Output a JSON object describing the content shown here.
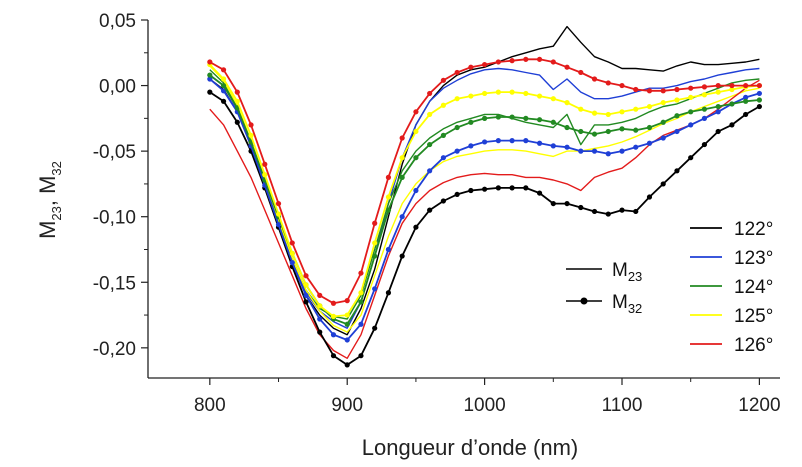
{
  "chart_data": {
    "type": "line",
    "xlabel": "Longueur d’onde (nm)",
    "ylabel": {
      "main1": "M",
      "sub1": "23",
      "sep": ", ",
      "main2": "M",
      "sub2": "32"
    },
    "xlim": [
      755,
      1215
    ],
    "ylim": [
      -0.223,
      0.05
    ],
    "xticks": [
      800,
      900,
      1000,
      1100,
      1200
    ],
    "xtick_labels": [
      "800",
      "900",
      "1000",
      "1100",
      "1200"
    ],
    "yticks": [
      0.05,
      0.0,
      -0.05,
      -0.1,
      -0.15,
      -0.2
    ],
    "ytick_labels": [
      "0,05",
      "0,00",
      "-0,05",
      "-0,10",
      "-0,15",
      "-0,20"
    ],
    "grid": false,
    "style_legend": {
      "placement": "center-right",
      "items": [
        {
          "main": "M",
          "sub": "23",
          "style": "line"
        },
        {
          "main": "M",
          "sub": "32",
          "style": "line-dots"
        }
      ]
    },
    "angle_legend": {
      "placement": "bottom-right",
      "items": [
        {
          "label": "122°",
          "color": "#000000"
        },
        {
          "label": "123°",
          "color": "#1f3fd6"
        },
        {
          "label": "124°",
          "color": "#228a22"
        },
        {
          "label": "125°",
          "color": "#ffff00"
        },
        {
          "label": "126°",
          "color": "#e31b1b"
        }
      ]
    },
    "series": [
      {
        "angle": "122°",
        "type": "M23",
        "color": "#000000",
        "markers": false,
        "x": [
          800,
          810,
          820,
          830,
          840,
          850,
          860,
          870,
          880,
          890,
          900,
          910,
          920,
          930,
          940,
          950,
          960,
          970,
          980,
          990,
          1000,
          1010,
          1020,
          1030,
          1040,
          1050,
          1060,
          1070,
          1080,
          1090,
          1100,
          1110,
          1120,
          1130,
          1140,
          1150,
          1160,
          1170,
          1180,
          1190,
          1200
        ],
        "y": [
          0.005,
          -0.003,
          -0.02,
          -0.045,
          -0.075,
          -0.105,
          -0.135,
          -0.16,
          -0.175,
          -0.185,
          -0.19,
          -0.17,
          -0.14,
          -0.1,
          -0.06,
          -0.03,
          -0.012,
          0.0,
          0.008,
          0.012,
          0.014,
          0.018,
          0.022,
          0.025,
          0.028,
          0.03,
          0.045,
          0.033,
          0.022,
          0.018,
          0.013,
          0.013,
          0.012,
          0.011,
          0.015,
          0.018,
          0.016,
          0.016,
          0.017,
          0.018,
          0.02
        ]
      },
      {
        "angle": "123°",
        "type": "M23",
        "color": "#1f3fd6",
        "markers": false,
        "x": [
          800,
          810,
          820,
          830,
          840,
          850,
          860,
          870,
          880,
          890,
          900,
          910,
          920,
          930,
          940,
          950,
          960,
          970,
          980,
          990,
          1000,
          1010,
          1020,
          1030,
          1040,
          1050,
          1060,
          1070,
          1080,
          1090,
          1100,
          1110,
          1120,
          1130,
          1140,
          1150,
          1160,
          1170,
          1180,
          1190,
          1200
        ],
        "y": [
          0.008,
          0.0,
          -0.018,
          -0.044,
          -0.074,
          -0.104,
          -0.133,
          -0.158,
          -0.172,
          -0.18,
          -0.185,
          -0.165,
          -0.13,
          -0.09,
          -0.055,
          -0.03,
          -0.012,
          -0.002,
          0.004,
          0.009,
          0.012,
          0.013,
          0.012,
          0.01,
          0.008,
          -0.003,
          0.005,
          -0.005,
          -0.01,
          -0.01,
          -0.008,
          -0.005,
          -0.002,
          -0.002,
          0.0,
          0.003,
          0.005,
          0.008,
          0.01,
          0.012,
          0.013
        ]
      },
      {
        "angle": "124°",
        "type": "M23",
        "color": "#228a22",
        "markers": false,
        "x": [
          800,
          810,
          820,
          830,
          840,
          850,
          860,
          870,
          880,
          890,
          900,
          910,
          920,
          930,
          940,
          950,
          960,
          970,
          980,
          990,
          1000,
          1010,
          1020,
          1030,
          1040,
          1050,
          1060,
          1070,
          1080,
          1090,
          1100,
          1110,
          1120,
          1130,
          1140,
          1150,
          1160,
          1170,
          1180,
          1190,
          1200
        ],
        "y": [
          0.012,
          0.002,
          -0.017,
          -0.043,
          -0.073,
          -0.103,
          -0.132,
          -0.156,
          -0.17,
          -0.176,
          -0.178,
          -0.16,
          -0.125,
          -0.09,
          -0.065,
          -0.05,
          -0.04,
          -0.033,
          -0.028,
          -0.025,
          -0.022,
          -0.022,
          -0.025,
          -0.028,
          -0.03,
          -0.032,
          -0.022,
          -0.045,
          -0.03,
          -0.03,
          -0.028,
          -0.025,
          -0.02,
          -0.016,
          -0.014,
          -0.01,
          -0.006,
          -0.002,
          0.002,
          0.004,
          0.005
        ]
      },
      {
        "angle": "125°",
        "type": "M23",
        "color": "#ffff00",
        "markers": false,
        "x": [
          800,
          810,
          820,
          830,
          840,
          850,
          860,
          870,
          880,
          890,
          900,
          910,
          920,
          930,
          940,
          950,
          960,
          970,
          980,
          990,
          1000,
          1010,
          1020,
          1030,
          1040,
          1050,
          1060,
          1070,
          1080,
          1090,
          1100,
          1110,
          1120,
          1130,
          1140,
          1150,
          1160,
          1170,
          1180,
          1190,
          1200
        ],
        "y": [
          0.015,
          0.004,
          -0.015,
          -0.042,
          -0.072,
          -0.102,
          -0.132,
          -0.156,
          -0.172,
          -0.183,
          -0.188,
          -0.175,
          -0.145,
          -0.115,
          -0.09,
          -0.075,
          -0.065,
          -0.058,
          -0.054,
          -0.052,
          -0.05,
          -0.049,
          -0.049,
          -0.05,
          -0.052,
          -0.054,
          -0.05,
          -0.05,
          -0.048,
          -0.046,
          -0.043,
          -0.039,
          -0.034,
          -0.029,
          -0.025,
          -0.02,
          -0.016,
          -0.012,
          -0.008,
          -0.004,
          -0.002
        ]
      },
      {
        "angle": "126°",
        "type": "M23",
        "color": "#e31b1b",
        "markers": false,
        "x": [
          800,
          810,
          820,
          830,
          840,
          850,
          860,
          870,
          880,
          890,
          900,
          910,
          920,
          930,
          940,
          950,
          960,
          970,
          980,
          990,
          1000,
          1010,
          1020,
          1030,
          1040,
          1050,
          1060,
          1070,
          1080,
          1090,
          1100,
          1110,
          1120,
          1130,
          1140,
          1150,
          1160,
          1170,
          1180,
          1190,
          1200
        ],
        "y": [
          -0.018,
          -0.03,
          -0.05,
          -0.07,
          -0.095,
          -0.12,
          -0.145,
          -0.17,
          -0.19,
          -0.202,
          -0.208,
          -0.19,
          -0.16,
          -0.13,
          -0.105,
          -0.09,
          -0.08,
          -0.074,
          -0.07,
          -0.068,
          -0.067,
          -0.068,
          -0.068,
          -0.07,
          -0.07,
          -0.072,
          -0.075,
          -0.08,
          -0.07,
          -0.066,
          -0.063,
          -0.055,
          -0.045,
          -0.038,
          -0.034,
          -0.03,
          -0.025,
          -0.018,
          -0.01,
          -0.002,
          0.004
        ]
      },
      {
        "angle": "122°",
        "type": "M32",
        "color": "#000000",
        "markers": true,
        "x": [
          800,
          810,
          820,
          830,
          840,
          850,
          860,
          870,
          880,
          890,
          900,
          910,
          920,
          930,
          940,
          950,
          960,
          970,
          980,
          990,
          1000,
          1010,
          1020,
          1030,
          1040,
          1050,
          1060,
          1070,
          1080,
          1090,
          1100,
          1110,
          1120,
          1130,
          1140,
          1150,
          1160,
          1170,
          1180,
          1190,
          1200
        ],
        "y": [
          -0.005,
          -0.012,
          -0.028,
          -0.05,
          -0.078,
          -0.108,
          -0.138,
          -0.165,
          -0.188,
          -0.206,
          -0.213,
          -0.206,
          -0.185,
          -0.158,
          -0.13,
          -0.108,
          -0.095,
          -0.088,
          -0.083,
          -0.08,
          -0.079,
          -0.078,
          -0.078,
          -0.078,
          -0.082,
          -0.09,
          -0.09,
          -0.093,
          -0.096,
          -0.098,
          -0.095,
          -0.096,
          -0.085,
          -0.075,
          -0.065,
          -0.055,
          -0.045,
          -0.035,
          -0.03,
          -0.022,
          -0.016
        ]
      },
      {
        "angle": "123°",
        "type": "M32",
        "color": "#1f3fd6",
        "markers": true,
        "x": [
          800,
          810,
          820,
          830,
          840,
          850,
          860,
          870,
          880,
          890,
          900,
          910,
          920,
          930,
          940,
          950,
          960,
          970,
          980,
          990,
          1000,
          1010,
          1020,
          1030,
          1040,
          1050,
          1060,
          1070,
          1080,
          1090,
          1100,
          1110,
          1120,
          1130,
          1140,
          1150,
          1160,
          1170,
          1180,
          1190,
          1200
        ],
        "y": [
          0.005,
          -0.004,
          -0.02,
          -0.046,
          -0.076,
          -0.106,
          -0.135,
          -0.16,
          -0.178,
          -0.19,
          -0.194,
          -0.182,
          -0.155,
          -0.125,
          -0.1,
          -0.08,
          -0.065,
          -0.055,
          -0.05,
          -0.046,
          -0.043,
          -0.042,
          -0.042,
          -0.042,
          -0.044,
          -0.046,
          -0.047,
          -0.05,
          -0.05,
          -0.052,
          -0.05,
          -0.047,
          -0.044,
          -0.04,
          -0.035,
          -0.03,
          -0.025,
          -0.02,
          -0.014,
          -0.009,
          -0.006
        ]
      },
      {
        "angle": "124°",
        "type": "M32",
        "color": "#228a22",
        "markers": true,
        "x": [
          800,
          810,
          820,
          830,
          840,
          850,
          860,
          870,
          880,
          890,
          900,
          910,
          920,
          930,
          940,
          950,
          960,
          970,
          980,
          990,
          1000,
          1010,
          1020,
          1030,
          1040,
          1050,
          1060,
          1070,
          1080,
          1090,
          1100,
          1110,
          1120,
          1130,
          1140,
          1150,
          1160,
          1170,
          1180,
          1190,
          1200
        ],
        "y": [
          0.008,
          0.0,
          -0.017,
          -0.043,
          -0.072,
          -0.1,
          -0.128,
          -0.152,
          -0.168,
          -0.178,
          -0.182,
          -0.165,
          -0.13,
          -0.095,
          -0.07,
          -0.055,
          -0.045,
          -0.038,
          -0.032,
          -0.028,
          -0.025,
          -0.024,
          -0.024,
          -0.025,
          -0.026,
          -0.028,
          -0.032,
          -0.035,
          -0.037,
          -0.035,
          -0.033,
          -0.034,
          -0.032,
          -0.028,
          -0.023,
          -0.02,
          -0.018,
          -0.016,
          -0.014,
          -0.012,
          -0.011
        ]
      },
      {
        "angle": "125°",
        "type": "M32",
        "color": "#ffff00",
        "markers": true,
        "x": [
          800,
          810,
          820,
          830,
          840,
          850,
          860,
          870,
          880,
          890,
          900,
          910,
          920,
          930,
          940,
          950,
          960,
          970,
          980,
          990,
          1000,
          1010,
          1020,
          1030,
          1040,
          1050,
          1060,
          1070,
          1080,
          1090,
          1100,
          1110,
          1120,
          1130,
          1140,
          1150,
          1160,
          1170,
          1180,
          1190,
          1200
        ],
        "y": [
          0.016,
          0.005,
          -0.012,
          -0.038,
          -0.068,
          -0.098,
          -0.128,
          -0.152,
          -0.168,
          -0.176,
          -0.175,
          -0.158,
          -0.12,
          -0.085,
          -0.055,
          -0.035,
          -0.022,
          -0.015,
          -0.01,
          -0.008,
          -0.006,
          -0.005,
          -0.005,
          -0.006,
          -0.008,
          -0.01,
          -0.013,
          -0.018,
          -0.021,
          -0.022,
          -0.02,
          -0.018,
          -0.016,
          -0.013,
          -0.011,
          -0.009,
          -0.007,
          -0.005,
          -0.003,
          -0.001,
          0.0
        ]
      },
      {
        "angle": "126°",
        "type": "M32",
        "color": "#e31b1b",
        "markers": true,
        "x": [
          800,
          810,
          820,
          830,
          840,
          850,
          860,
          870,
          880,
          890,
          900,
          910,
          920,
          930,
          940,
          950,
          960,
          970,
          980,
          990,
          1000,
          1010,
          1020,
          1030,
          1040,
          1050,
          1060,
          1070,
          1080,
          1090,
          1100,
          1110,
          1120,
          1130,
          1140,
          1150,
          1160,
          1170,
          1180,
          1190,
          1200
        ],
        "y": [
          0.018,
          0.012,
          -0.005,
          -0.03,
          -0.06,
          -0.09,
          -0.12,
          -0.145,
          -0.16,
          -0.166,
          -0.164,
          -0.143,
          -0.105,
          -0.07,
          -0.04,
          -0.02,
          -0.006,
          0.004,
          0.01,
          0.014,
          0.016,
          0.018,
          0.019,
          0.02,
          0.02,
          0.018,
          0.014,
          0.01,
          0.005,
          0.002,
          0.0,
          -0.003,
          -0.004,
          -0.004,
          -0.003,
          -0.002,
          -0.001,
          0.0,
          0.0,
          0.0,
          0.0
        ]
      }
    ]
  }
}
